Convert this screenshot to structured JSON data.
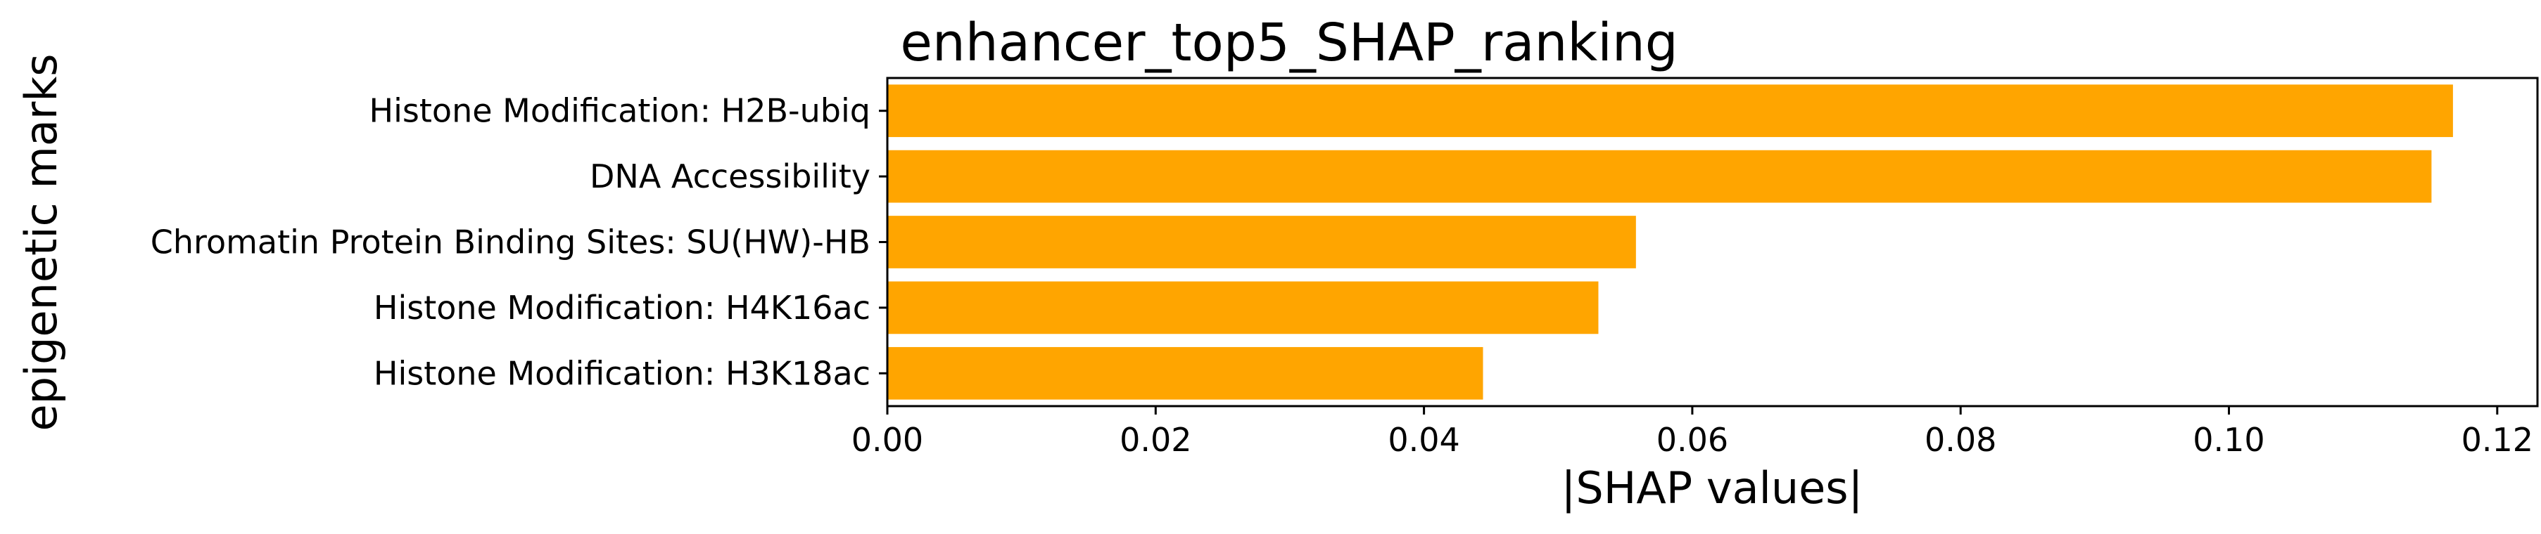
{
  "chart_data": {
    "type": "bar",
    "orientation": "horizontal",
    "title": "enhancer_top5_SHAP_ranking",
    "xlabel": "|SHAP values|",
    "ylabel": "epigenetic marks",
    "categories": [
      "Histone Modification: H2B-ubiq",
      "DNA Accessibility",
      "Chromatin Protein Binding Sites: SU(HW)-HB",
      "Histone Modification: H4K16ac",
      "Histone Modification: H3K18ac"
    ],
    "values": [
      0.1167,
      0.1151,
      0.0558,
      0.053,
      0.0444
    ],
    "xlim": [
      0,
      0.123
    ],
    "xticks": [
      "0.00",
      "0.02",
      "0.04",
      "0.06",
      "0.08",
      "0.10",
      "0.12"
    ],
    "xtick_values": [
      0,
      0.02,
      0.04,
      0.06,
      0.08,
      0.1,
      0.12
    ],
    "bar_color": "#ffa500",
    "grid": false,
    "legend": "none"
  }
}
